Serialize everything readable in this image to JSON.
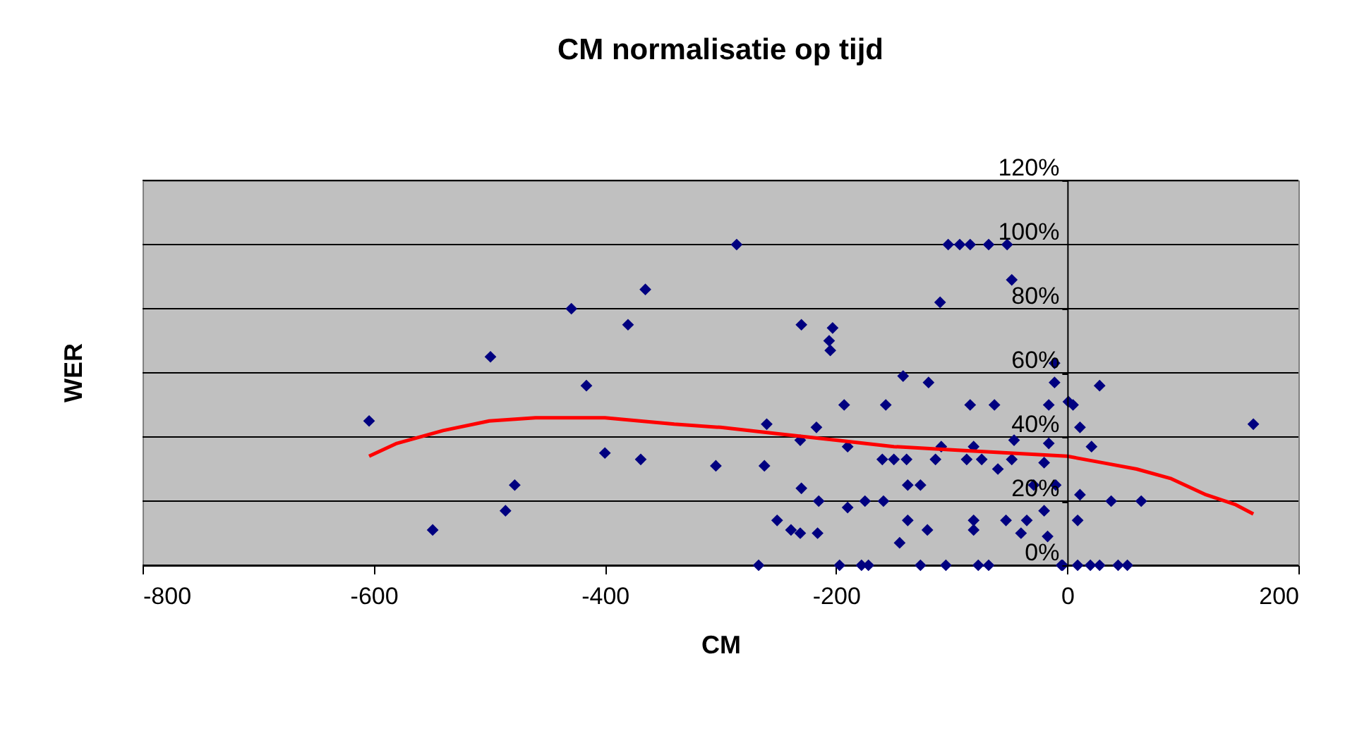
{
  "chart_data": {
    "type": "scatter",
    "title": "CM normalisatie op tijd",
    "xlabel": "CM",
    "ylabel": "WER",
    "xlim": [
      -800,
      200
    ],
    "xticks": [
      -800,
      -600,
      -400,
      -200,
      0,
      200
    ],
    "ylim": [
      0,
      120
    ],
    "yticks": [
      {
        "value": 0,
        "label": "0%"
      },
      {
        "value": 20,
        "label": "20%"
      },
      {
        "value": 40,
        "label": "40%"
      },
      {
        "value": 60,
        "label": "60%"
      },
      {
        "value": 80,
        "label": "80%"
      },
      {
        "value": 100,
        "label": "100%"
      },
      {
        "value": 120,
        "label": "120%"
      }
    ],
    "grid": "y",
    "marker": "diamond",
    "series": [
      {
        "color": "#000080",
        "x": [
          -604,
          -549,
          -499,
          -486,
          -478,
          -429,
          -416,
          -400,
          -369,
          -380,
          -365,
          -286,
          -304,
          -262,
          -260,
          -251,
          -239,
          -267,
          -230,
          -203,
          -206,
          -205,
          -217,
          -231,
          -190,
          -193,
          -157,
          -142,
          -120,
          -110,
          -103,
          -93,
          -84,
          -68,
          -52,
          -48,
          -11,
          -11,
          -16,
          -84,
          -63,
          -230,
          -215,
          -190,
          -175,
          -159,
          -231,
          -216,
          -160,
          -150,
          -139,
          -114,
          -87,
          -74,
          -48,
          -20,
          -138,
          -127,
          -60,
          -81,
          -109,
          -46,
          -16,
          -29,
          -10,
          -138,
          -121,
          -145,
          -81,
          -81,
          -53,
          -35,
          -40,
          -20,
          -17,
          -197,
          -178,
          -172,
          -127,
          -105,
          -77,
          -68,
          -5,
          1,
          5,
          28,
          11,
          21,
          11,
          9,
          38,
          64,
          161,
          -4,
          9,
          20,
          28,
          44,
          52
        ],
        "values": [
          45,
          11,
          65,
          17,
          25,
          80,
          56,
          35,
          33,
          75,
          86,
          100,
          31,
          31,
          44,
          14,
          11,
          0,
          75,
          74,
          70,
          67,
          43,
          39,
          37,
          50,
          50,
          59,
          57,
          82,
          100,
          100,
          100,
          100,
          100,
          89,
          63,
          57,
          50,
          50,
          50,
          24,
          20,
          18,
          20,
          20,
          10,
          10,
          33,
          33,
          33,
          33,
          33,
          33,
          33,
          32,
          25,
          25,
          30,
          37,
          37,
          39,
          38,
          25,
          25,
          14,
          11,
          7,
          14,
          11,
          14,
          14,
          10,
          17,
          9,
          0,
          0,
          0,
          0,
          0,
          0,
          0,
          0,
          51,
          50,
          56,
          43,
          37,
          22,
          14,
          20,
          20,
          44,
          0,
          0,
          0,
          0,
          0,
          0
        ]
      },
      {
        "type": "line",
        "color": "#ff0000",
        "marker": "none",
        "line_style": "solid",
        "x": [
          -604,
          -580,
          -540,
          -500,
          -460,
          -400,
          -340,
          -300,
          -250,
          -200,
          -150,
          -100,
          -50,
          0,
          30,
          60,
          90,
          120,
          145,
          161
        ],
        "values": [
          34,
          38,
          42,
          45,
          46,
          46,
          44,
          43,
          41,
          39,
          37,
          36,
          35,
          34,
          32,
          30,
          27,
          22,
          19,
          16
        ]
      }
    ]
  }
}
